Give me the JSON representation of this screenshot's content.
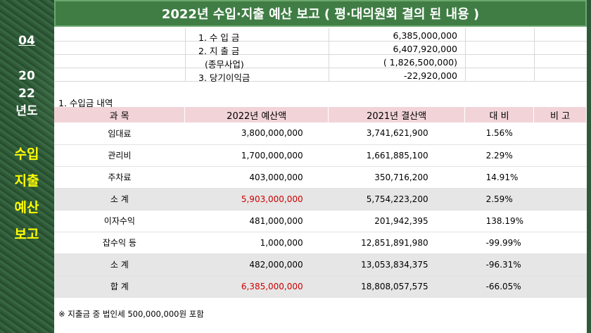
{
  "title": "2022년 수입·지출 예산 보고 ( 평·대의원회 결의 된 내용 )",
  "left_panel": {
    "month": "04",
    "year_line1": "20",
    "year_line2": "22",
    "year_suffix": "년도",
    "title_lines": [
      "수입",
      "지출",
      "예산",
      "보고"
    ]
  },
  "summary": [
    {
      "label": "1. 수 입 금",
      "value": "6,385,000,000"
    },
    {
      "label": "2. 지 출 금",
      "value": "6,407,920,000"
    },
    {
      "label": "(종무사업)",
      "value": "( 1,826,500,000)"
    },
    {
      "label": "3. 당기이익금",
      "value": "-22,920,000"
    }
  ],
  "section_label": "1. 수입금 내역",
  "table": {
    "headers": [
      "과 목",
      "2022년 예산액",
      "2021년 결산액",
      "대 비",
      "비 고"
    ],
    "rows": [
      {
        "category": "임대료",
        "budget": "3,800,000,000",
        "settled": "3,741,621,900",
        "ratio": "1.56%",
        "note": ""
      },
      {
        "category": "관리비",
        "budget": "1,700,000,000",
        "settled": "1,661,885,100",
        "ratio": "2.29%",
        "note": ""
      },
      {
        "category": "주차료",
        "budget": "403,000,000",
        "settled": "350,716,200",
        "ratio": "14.91%",
        "note": ""
      },
      {
        "category": "소 계",
        "budget": "5,903,000,000",
        "settled": "5,754,223,200",
        "ratio": "2.59%",
        "note": ""
      },
      {
        "category": "이자수익",
        "budget": "481,000,000",
        "settled": "201,942,395",
        "ratio": "138.19%",
        "note": ""
      },
      {
        "category": "잡수익 등",
        "budget": "1,000,000",
        "settled": "12,851,891,980",
        "ratio": "-99.99%",
        "note": ""
      },
      {
        "category": "소 계",
        "budget": "482,000,000",
        "settled": "13,053,834,375",
        "ratio": "-96.31%",
        "note": ""
      },
      {
        "category": "합 계",
        "budget": "6,385,000,000",
        "settled": "18,808,057,575",
        "ratio": "-66.05%",
        "note": ""
      }
    ]
  },
  "footnote": "※ 지출금 중 법인세 500,000,000원 포함",
  "colors": {
    "title_bg": "#3f7d44",
    "header_bg": "#f2d4d8",
    "highlight_text": "#cc0000",
    "side_title": "#ffff00"
  }
}
